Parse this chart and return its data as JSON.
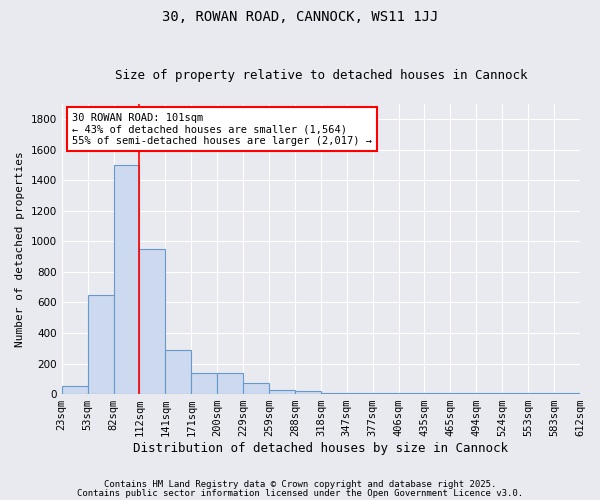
{
  "title1": "30, ROWAN ROAD, CANNOCK, WS11 1JJ",
  "title2": "Size of property relative to detached houses in Cannock",
  "xlabel": "Distribution of detached houses by size in Cannock",
  "ylabel": "Number of detached properties",
  "bar_values": [
    50,
    650,
    1500,
    950,
    290,
    135,
    135,
    70,
    25,
    20,
    5,
    5,
    5,
    5,
    5,
    5,
    5,
    5,
    5,
    5
  ],
  "bin_labels": [
    "23sqm",
    "53sqm",
    "82sqm",
    "112sqm",
    "141sqm",
    "171sqm",
    "200sqm",
    "229sqm",
    "259sqm",
    "288sqm",
    "318sqm",
    "347sqm",
    "377sqm",
    "406sqm",
    "435sqm",
    "465sqm",
    "494sqm",
    "524sqm",
    "553sqm",
    "583sqm",
    "612sqm"
  ],
  "bar_color": "#ccd9ee",
  "bar_edge_color": "#6699cc",
  "background_color": "#e8eaf0",
  "grid_color": "#ffffff",
  "annotation_text": "30 ROWAN ROAD: 101sqm\n← 43% of detached houses are smaller (1,564)\n55% of semi-detached houses are larger (2,017) →",
  "red_line_bin": 2.5,
  "ylim": [
    0,
    1900
  ],
  "yticks": [
    0,
    200,
    400,
    600,
    800,
    1000,
    1200,
    1400,
    1600,
    1800
  ],
  "footer1": "Contains HM Land Registry data © Crown copyright and database right 2025.",
  "footer2": "Contains public sector information licensed under the Open Government Licence v3.0.",
  "title_fontsize": 10,
  "subtitle_fontsize": 9,
  "ylabel_fontsize": 8,
  "xlabel_fontsize": 9,
  "tick_fontsize": 7.5,
  "annot_fontsize": 7.5,
  "footer_fontsize": 6.5
}
